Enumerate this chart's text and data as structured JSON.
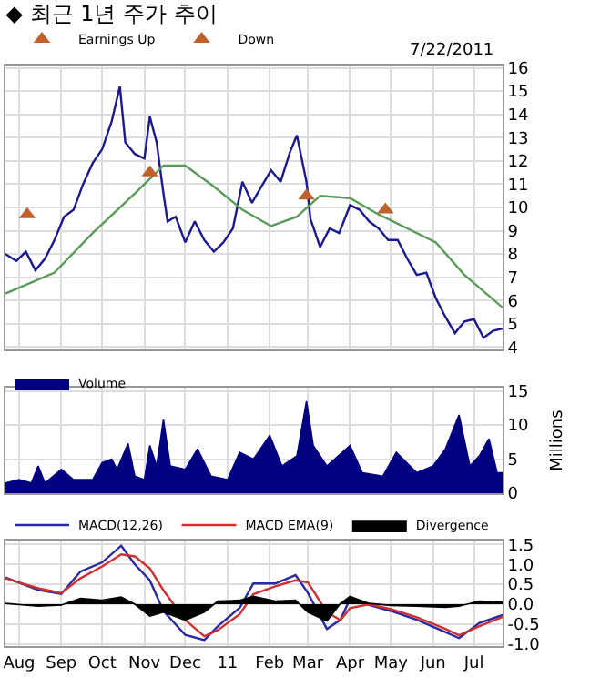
{
  "chart_data": [
    {
      "type": "line",
      "title": "◆ 최근 1년 주가 추이",
      "annotations": [
        "7/22/2011"
      ],
      "xlim": [
        "2010-07-22",
        "2011-07-22"
      ],
      "xticks": [
        "2010-08-01",
        "2010-09-01",
        "2010-10-01",
        "2010-11-01",
        "2010-12-01",
        "2011-01-01",
        "2011-02-01",
        "2011-03-01",
        "2011-04-01",
        "2011-05-01",
        "2011-06-01",
        "2011-07-01"
      ],
      "ylim": [
        3.9,
        16.1
      ],
      "yticks": [
        4,
        5,
        6,
        7,
        8,
        9,
        10,
        11,
        12,
        13,
        14,
        15,
        16
      ],
      "grid": true,
      "legend": "top left",
      "tick_labels": "y",
      "series": [
        {
          "color": "#1a1a8c",
          "x": [
            "2010-07-22",
            "2010-07-30",
            "2010-08-06",
            "2010-08-13",
            "2010-08-20",
            "2010-08-27",
            "2010-09-03",
            "2010-09-10",
            "2010-09-17",
            "2010-09-24",
            "2010-10-01",
            "2010-10-08",
            "2010-10-14",
            "2010-10-18",
            "2010-10-25",
            "2010-11-01",
            "2010-11-05",
            "2010-11-10",
            "2010-11-15",
            "2010-11-18",
            "2010-11-24",
            "2010-12-01",
            "2010-12-08",
            "2010-12-15",
            "2010-12-22",
            "2010-12-29",
            "2011-01-05",
            "2011-01-12",
            "2011-01-19",
            "2011-01-26",
            "2011-02-02",
            "2011-02-09",
            "2011-02-16",
            "2011-02-21",
            "2011-02-28",
            "2011-03-03",
            "2011-03-10",
            "2011-03-17",
            "2011-03-24",
            "2011-04-01",
            "2011-04-08",
            "2011-04-15",
            "2011-04-22",
            "2011-04-29",
            "2011-05-06",
            "2011-05-13",
            "2011-05-20",
            "2011-05-27",
            "2011-06-03",
            "2011-06-10",
            "2011-06-17",
            "2011-06-24",
            "2011-07-01",
            "2011-07-08",
            "2011-07-15",
            "2011-07-22"
          ],
          "values": [
            8.0,
            7.7,
            8.1,
            7.3,
            7.8,
            8.6,
            9.6,
            9.9,
            11.0,
            11.9,
            12.5,
            13.7,
            15.2,
            12.8,
            12.3,
            12.1,
            13.9,
            12.8,
            10.6,
            9.4,
            9.6,
            8.5,
            9.4,
            8.6,
            8.1,
            8.5,
            9.1,
            11.1,
            10.2,
            10.9,
            11.6,
            11.1,
            12.4,
            13.1,
            11.1,
            9.5,
            8.3,
            9.1,
            8.9,
            10.1,
            9.9,
            9.4,
            9.1,
            8.6,
            8.6,
            7.8,
            7.1,
            7.2,
            6.1,
            5.3,
            4.6,
            5.1,
            5.2,
            4.4,
            4.7,
            4.8
          ]
        },
        {
          "color": "#5a9a5a",
          "x": [
            "2010-07-22",
            "2010-08-27",
            "2010-09-24",
            "2010-10-25",
            "2010-11-15",
            "2010-12-01",
            "2010-12-22",
            "2011-01-12",
            "2011-02-02",
            "2011-02-21",
            "2011-03-10",
            "2011-04-01",
            "2011-04-22",
            "2011-05-13",
            "2011-06-03",
            "2011-06-24",
            "2011-07-22"
          ],
          "values": [
            6.3,
            7.2,
            8.9,
            10.6,
            11.8,
            11.8,
            10.9,
            9.9,
            9.2,
            9.6,
            10.5,
            10.4,
            9.7,
            9.1,
            8.5,
            7.1,
            5.7
          ]
        },
        {
          "type": "scatter",
          "name": "Earnings Up",
          "color": "#c0602a",
          "marker": "triangle",
          "x": [
            "2010-08-07",
            "2010-11-05",
            "2011-02-28",
            "2011-04-27"
          ],
          "values": [
            9.7,
            11.5,
            10.5,
            9.9
          ]
        },
        {
          "type": "scatter",
          "name": "Down",
          "color": "#c0602a",
          "marker": "triangle"
        }
      ]
    },
    {
      "type": "area",
      "ylabel": "Millions",
      "xlim": [
        "2010-07-22",
        "2011-07-22"
      ],
      "xticks": [
        "2010-08-01",
        "2010-09-01",
        "2010-10-01",
        "2010-11-01",
        "2010-12-01",
        "2011-01-01",
        "2011-02-01",
        "2011-03-01",
        "2011-04-01",
        "2011-05-01",
        "2011-06-01",
        "2011-07-01"
      ],
      "ylim": [
        0,
        15.5
      ],
      "yticks": [
        0,
        5,
        10,
        15
      ],
      "grid": true,
      "legend": "top left",
      "tick_labels": "y",
      "series": [
        {
          "name": "Volume",
          "color": "#000080",
          "x": [
            "2010-07-22",
            "2010-08-01",
            "2010-08-10",
            "2010-08-15",
            "2010-08-20",
            "2010-09-01",
            "2010-09-10",
            "2010-09-24",
            "2010-10-01",
            "2010-10-08",
            "2010-10-12",
            "2010-10-20",
            "2010-10-25",
            "2010-11-01",
            "2010-11-05",
            "2010-11-10",
            "2010-11-15",
            "2010-11-20",
            "2010-12-01",
            "2010-12-10",
            "2010-12-20",
            "2011-01-01",
            "2011-01-10",
            "2011-01-20",
            "2011-02-01",
            "2011-02-10",
            "2011-02-21",
            "2011-02-28",
            "2011-03-05",
            "2011-03-15",
            "2011-04-01",
            "2011-04-10",
            "2011-04-25",
            "2011-05-05",
            "2011-05-20",
            "2011-06-01",
            "2011-06-10",
            "2011-06-20",
            "2011-06-28",
            "2011-07-05",
            "2011-07-12",
            "2011-07-18",
            "2011-07-22"
          ],
          "values": [
            1.5,
            2,
            1.5,
            4,
            1.5,
            3.5,
            2,
            2,
            4.5,
            5,
            3.5,
            7.3,
            2.5,
            2,
            7,
            4,
            10.8,
            4,
            3.5,
            6.5,
            2.5,
            2,
            6,
            5,
            8.5,
            4,
            5.5,
            13.5,
            7,
            4,
            7,
            3,
            2.5,
            6,
            3,
            4,
            6.5,
            11.5,
            4,
            5.5,
            8,
            3,
            3
          ]
        }
      ]
    },
    {
      "type": "line",
      "xlim": [
        "2010-07-22",
        "2011-07-22"
      ],
      "xticks": [
        {
          "value": "2010-08-01",
          "label": "Aug"
        },
        {
          "value": "2010-09-01",
          "label": "Sep"
        },
        {
          "value": "2010-10-01",
          "label": "Oct"
        },
        {
          "value": "2010-11-01",
          "label": "Nov"
        },
        {
          "value": "2010-12-01",
          "label": "Dec"
        },
        {
          "value": "2011-01-01",
          "label": "11"
        },
        {
          "value": "2011-02-01",
          "label": "Feb"
        },
        {
          "value": "2011-03-01",
          "label": "Mar"
        },
        {
          "value": "2011-04-01",
          "label": "Apr"
        },
        {
          "value": "2011-05-01",
          "label": "May"
        },
        {
          "value": "2011-06-01",
          "label": "Jun"
        },
        {
          "value": "2011-07-01",
          "label": "Jul"
        }
      ],
      "ylim": [
        -1.05,
        1.6
      ],
      "yticks": [
        {
          "value": 1.5,
          "label": "1.5"
        },
        {
          "value": 1,
          "label": "1.0"
        },
        {
          "value": 0.5,
          "label": "0.5"
        },
        {
          "value": 0,
          "label": "0.0"
        },
        {
          "value": -0.5,
          "label": "-0.5"
        },
        {
          "value": -1,
          "label": "-1.0"
        }
      ],
      "grid": true,
      "legend": "top left",
      "x": [
        "2010-07-22",
        "2010-08-15",
        "2010-09-01",
        "2010-09-15",
        "2010-10-01",
        "2010-10-15",
        "2010-10-25",
        "2010-11-05",
        "2010-11-15",
        "2010-12-01",
        "2010-12-15",
        "2010-12-25",
        "2011-01-10",
        "2011-01-20",
        "2011-02-05",
        "2011-02-20",
        "2011-03-01",
        "2011-03-15",
        "2011-03-25",
        "2011-04-01",
        "2011-04-15",
        "2011-05-01",
        "2011-05-20",
        "2011-06-10",
        "2011-06-20",
        "2011-07-05",
        "2011-07-22"
      ],
      "series": [
        {
          "name": "MACD(12,26)",
          "color": "#2a2aa0",
          "values": [
            0.67,
            0.36,
            0.26,
            0.82,
            1.05,
            1.47,
            1.0,
            0.6,
            -0.17,
            -0.77,
            -0.9,
            -0.55,
            -0.09,
            0.52,
            0.52,
            0.73,
            0.29,
            -0.62,
            -0.39,
            0.14,
            -0.02,
            -0.17,
            -0.39,
            -0.7,
            -0.85,
            -0.47,
            -0.27
          ]
        },
        {
          "name": "MACD EMA(9)",
          "color": "#d03030",
          "values": [
            0.65,
            0.4,
            0.28,
            0.65,
            0.95,
            1.25,
            1.2,
            0.9,
            0.35,
            -0.4,
            -0.8,
            -0.65,
            -0.25,
            0.25,
            0.45,
            0.6,
            0.55,
            -0.2,
            -0.4,
            -0.1,
            0.0,
            -0.12,
            -0.33,
            -0.62,
            -0.78,
            -0.55,
            -0.32
          ]
        },
        {
          "type": "area",
          "name": "Divergence",
          "color": "#000000",
          "values": [
            0.02,
            -0.05,
            -0.02,
            0.15,
            0.1,
            0.18,
            0.0,
            -0.3,
            -0.2,
            -0.4,
            -0.2,
            0.08,
            0.1,
            0.2,
            0.08,
            0.1,
            -0.2,
            -0.42,
            0.02,
            0.2,
            0.02,
            -0.03,
            -0.05,
            -0.08,
            -0.05,
            0.08,
            0.05
          ]
        }
      ]
    }
  ]
}
